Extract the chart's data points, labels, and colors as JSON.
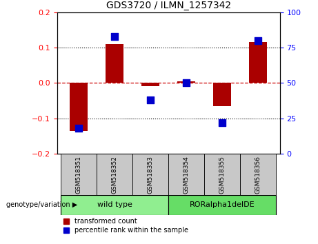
{
  "title": "GDS3720 / ILMN_1257342",
  "samples": [
    "GSM518351",
    "GSM518352",
    "GSM518353",
    "GSM518354",
    "GSM518355",
    "GSM518356"
  ],
  "red_values": [
    -0.135,
    0.11,
    -0.01,
    0.005,
    -0.065,
    0.115
  ],
  "blue_values": [
    18,
    83,
    38,
    50,
    22,
    80
  ],
  "ylim_left": [
    -0.2,
    0.2
  ],
  "ylim_right": [
    0,
    100
  ],
  "yticks_left": [
    -0.2,
    -0.1,
    0,
    0.1,
    0.2
  ],
  "yticks_right": [
    0,
    25,
    50,
    75,
    100
  ],
  "groups": [
    {
      "label": "wild type",
      "color": "#90EE90",
      "start": 0,
      "end": 2
    },
    {
      "label": "RORalpha1delDE",
      "color": "#66DD66",
      "start": 3,
      "end": 5
    }
  ],
  "genotype_label": "genotype/variation",
  "legend_red": "transformed count",
  "legend_blue": "percentile rank within the sample",
  "red_color": "#AA0000",
  "blue_color": "#0000CC",
  "bar_width": 0.5,
  "blue_marker_size": 55,
  "background_color": "#ffffff",
  "plot_bg": "#ffffff",
  "dashed_zero_color": "#CC0000",
  "sample_bg_color": "#C8C8C8"
}
